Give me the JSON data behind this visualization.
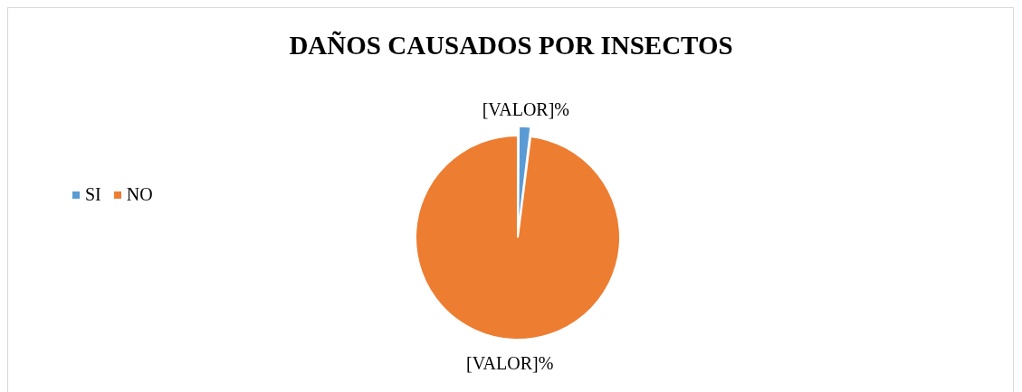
{
  "chart_data": {
    "type": "pie",
    "title": "DAÑOS CAUSADOS POR INSECTOS",
    "categories": [
      "SI",
      "NO"
    ],
    "values": [
      2,
      98
    ],
    "colors": [
      "#5b9bd5",
      "#ed7d31"
    ],
    "value_labels": [
      "[VALOR]%",
      "[VALOR]%"
    ],
    "legend": "left"
  }
}
